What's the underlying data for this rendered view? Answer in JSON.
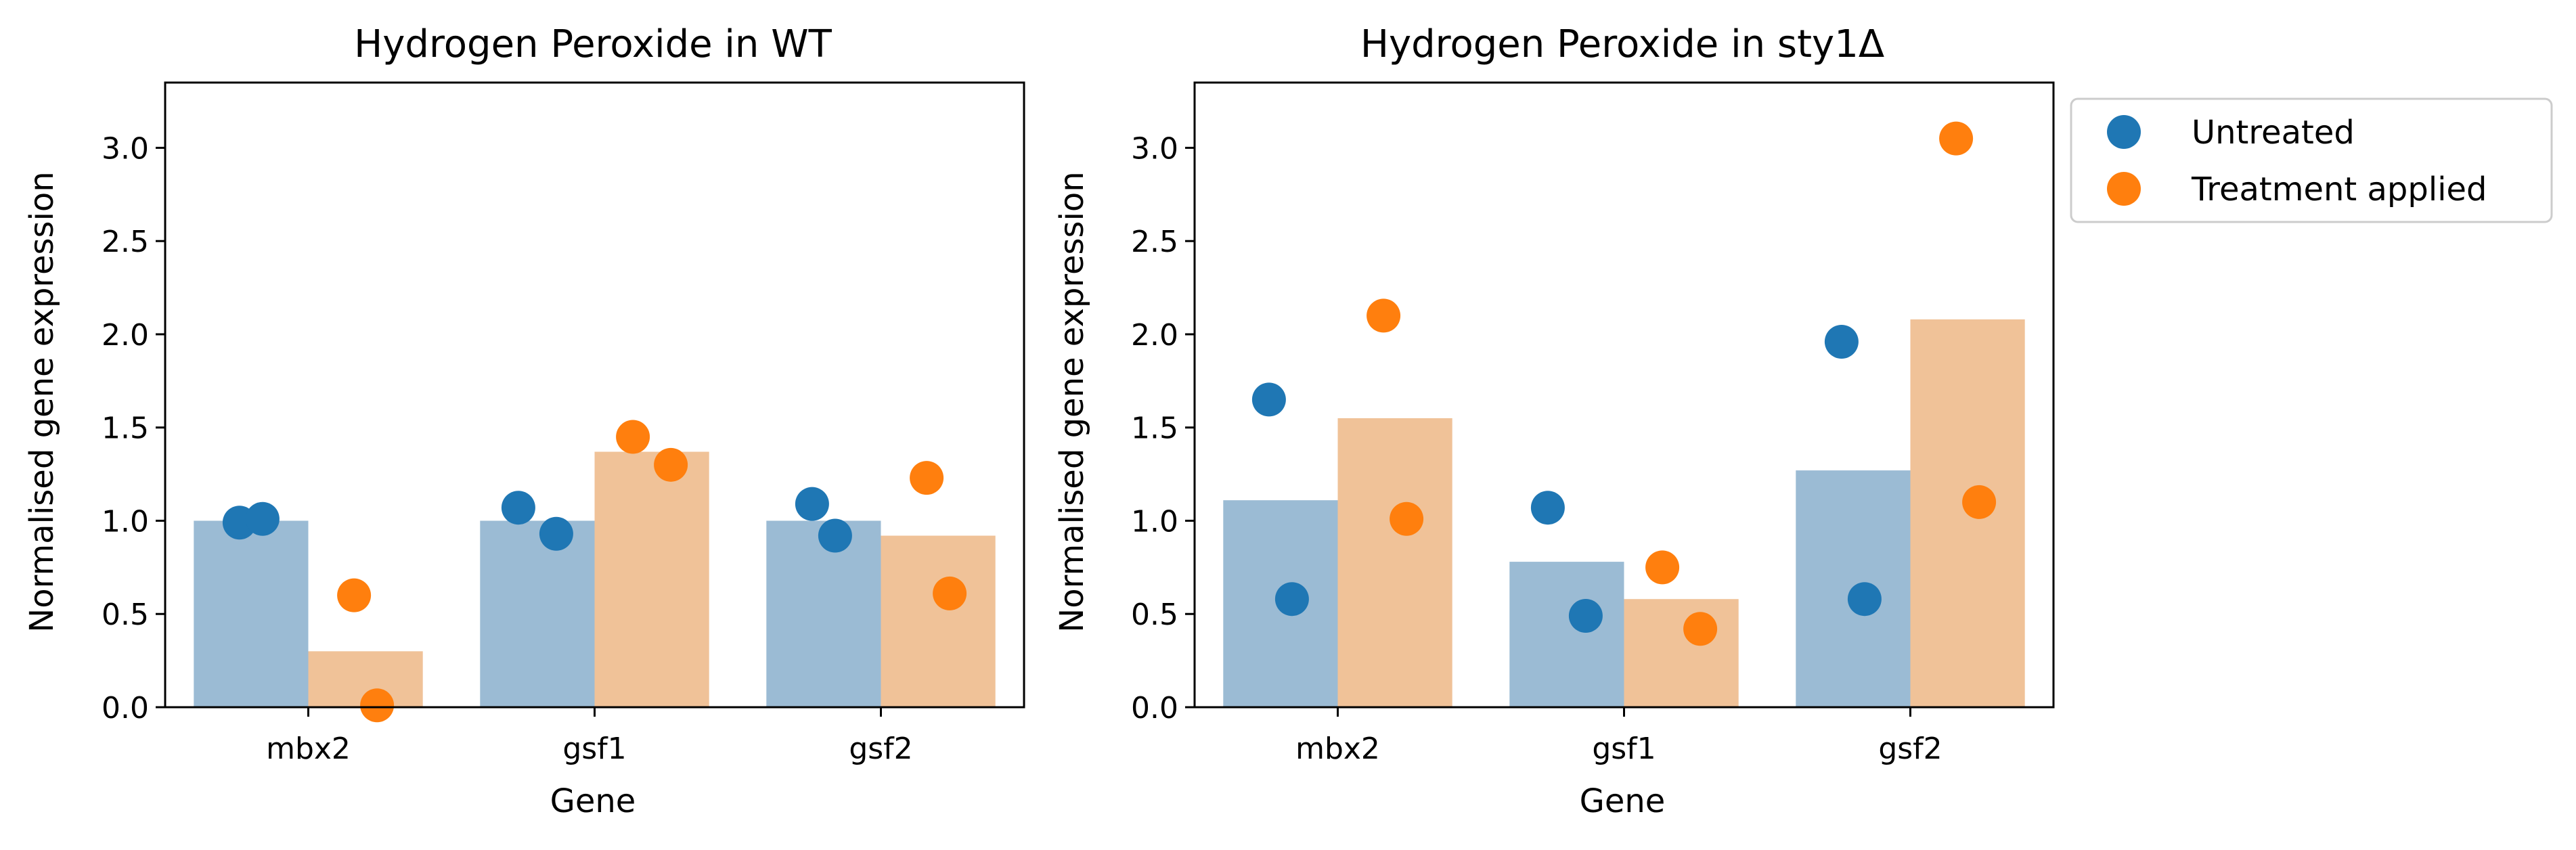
{
  "chart_data": [
    {
      "type": "bar",
      "title": "Hydrogen Peroxide in WT",
      "xlabel": "Gene",
      "ylabel": "Normalised gene expression",
      "categories": [
        "mbx2",
        "gsf1",
        "gsf2"
      ],
      "ylim": [
        0,
        3.35
      ],
      "yticks": [
        "0.0",
        "0.5",
        "1.0",
        "1.5",
        "2.0",
        "2.5",
        "3.0"
      ],
      "series": [
        {
          "name": "Untreated",
          "bar_color": "#9bbbd4",
          "point_color": "#1f77b4",
          "means": [
            1.0,
            1.0,
            1.0
          ],
          "points": [
            [
              0.99,
              1.01
            ],
            [
              1.07,
              0.93
            ],
            [
              1.09,
              0.92
            ]
          ]
        },
        {
          "name": "Treatment applied",
          "bar_color": "#f0c298",
          "point_color": "#ff7f0e",
          "means": [
            0.3,
            1.37,
            0.92
          ],
          "points": [
            [
              0.6,
              0.01
            ],
            [
              1.45,
              1.3
            ],
            [
              1.23,
              0.61
            ]
          ]
        }
      ]
    },
    {
      "type": "bar",
      "title": "Hydrogen Peroxide in sty1Δ",
      "xlabel": "Gene",
      "ylabel": "Normalised gene expression",
      "categories": [
        "mbx2",
        "gsf1",
        "gsf2"
      ],
      "ylim": [
        0,
        3.35
      ],
      "yticks": [
        "0.0",
        "0.5",
        "1.0",
        "1.5",
        "2.0",
        "2.5",
        "3.0"
      ],
      "series": [
        {
          "name": "Untreated",
          "bar_color": "#9bbbd4",
          "point_color": "#1f77b4",
          "means": [
            1.11,
            0.78,
            1.27
          ],
          "points": [
            [
              1.65,
              0.58
            ],
            [
              1.07,
              0.49
            ],
            [
              1.96,
              0.58
            ]
          ]
        },
        {
          "name": "Treatment applied",
          "bar_color": "#f0c298",
          "point_color": "#ff7f0e",
          "means": [
            1.55,
            0.58,
            2.08
          ],
          "points": [
            [
              2.1,
              1.01
            ],
            [
              0.75,
              0.42
            ],
            [
              3.05,
              1.1
            ]
          ]
        }
      ]
    }
  ],
  "legend": {
    "placement": "outside-right",
    "entries": [
      {
        "label": "Untreated",
        "color": "#1f77b4"
      },
      {
        "label": "Treatment applied",
        "color": "#ff7f0e"
      }
    ]
  }
}
